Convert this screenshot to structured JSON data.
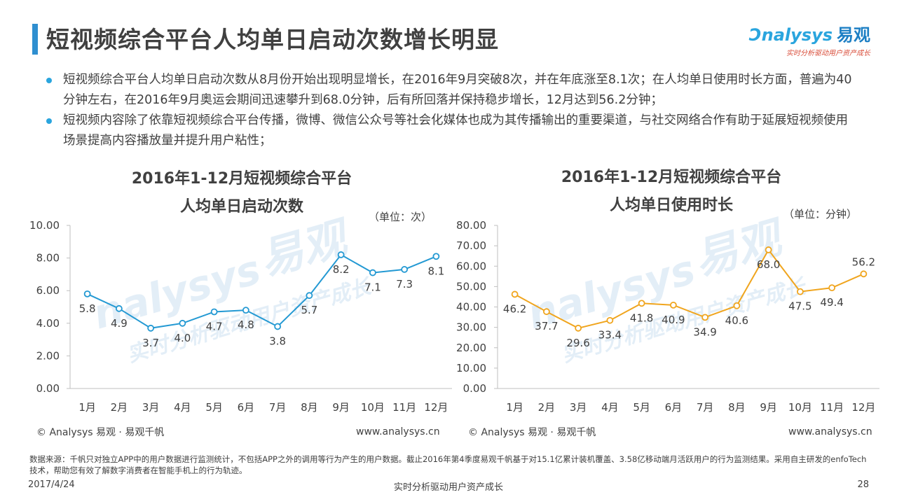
{
  "header": {
    "title": "短视频综合平台人均单日启动次数增长明显",
    "logo_text": "nalysys",
    "logo_cn": "易观",
    "logo_slogan": "实时分析驱动用户资产成长"
  },
  "bullets": [
    "短视频综合平台人均单日启动次数从8月份开始出现明显增长，在2016年9月突破8次，并在年底涨至8.1次；在人均单日使用时长方面，普遍为40分钟左右，在2016年9月奥运会期间迅速攀升到68.0分钟，后有所回落并保持稳步增长，12月达到56.2分钟；",
    "短视频内容除了依靠短视频综合平台传播，微博、微信公众号等社会化媒体也成为其传播输出的重要渠道，与社交网络合作有助于延展短视频使用场景提高内容播放量并提升用户粘性；"
  ],
  "watermark": {
    "brand": "nalysys",
    "cn": "易观",
    "slogan": "实时分析驱动用户资产成长"
  },
  "chart_data": [
    {
      "type": "line",
      "title_line1": "2016年1-12月短视频综合平台",
      "title_line2": "人均单日启动次数",
      "unit": "（单位：次）",
      "categories": [
        "1月",
        "2月",
        "3月",
        "4月",
        "5月",
        "6月",
        "7月",
        "8月",
        "9月",
        "10月",
        "11月",
        "12月"
      ],
      "series": [
        {
          "values": [
            5.8,
            4.9,
            3.7,
            4.0,
            4.7,
            4.8,
            3.8,
            5.7,
            8.2,
            7.1,
            7.3,
            8.1
          ],
          "color": "#2399d3"
        }
      ],
      "ylim": [
        0,
        10
      ],
      "yticks": [
        "0.00",
        "2.00",
        "4.00",
        "6.00",
        "8.00",
        "10.00"
      ],
      "grid": false,
      "copyright": "© Analysys 易观 · 易观千帆",
      "website": "www.analysys.cn"
    },
    {
      "type": "line",
      "title_line1": "2016年1-12月短视频综合平台",
      "title_line2": "人均单日使用时长",
      "unit": "（单位：分钟）",
      "categories": [
        "1月",
        "2月",
        "3月",
        "4月",
        "5月",
        "6月",
        "7月",
        "8月",
        "9月",
        "10月",
        "11月",
        "12月"
      ],
      "series": [
        {
          "values": [
            46.2,
            37.7,
            29.6,
            33.4,
            41.8,
            40.9,
            34.9,
            40.6,
            68.0,
            47.5,
            49.4,
            56.2
          ],
          "color": "#f0a51e"
        }
      ],
      "ylim": [
        0,
        80
      ],
      "yticks": [
        "0.00",
        "10.00",
        "20.00",
        "30.00",
        "40.00",
        "50.00",
        "60.00",
        "70.00",
        "80.00"
      ],
      "grid": false,
      "copyright": "© Analysys 易观 · 易观千帆",
      "website": "www.analysys.cn"
    }
  ],
  "footer": {
    "source": "数据来源：千帆只对独立APP中的用户数据进行监测统计，不包括APP之外的调用等行为产生的用户数据。截止2016年第4季度易观千帆基于对15.1亿累计装机覆盖、3.58亿移动端月活跃用户的行为监测结果。采用自主研发的enfoTech技术，帮助您有效了解数字消费者在智能手机上的行为轨迹。",
    "date": "2017/4/24",
    "slogan": "实时分析驱动用户资产成长",
    "page": "28"
  }
}
